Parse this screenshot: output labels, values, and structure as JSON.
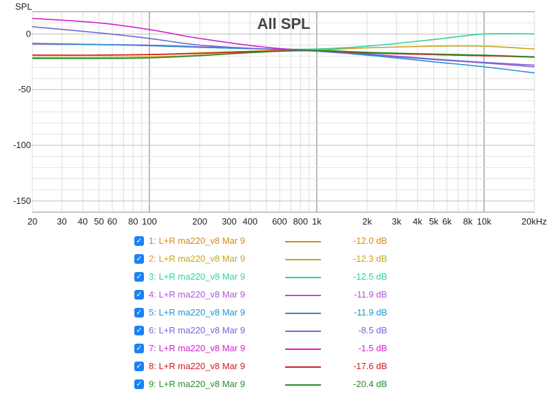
{
  "chart_data": {
    "type": "line",
    "title": "All SPL",
    "ylabel": "SPL",
    "xlabel": "",
    "x_scale": "log",
    "xlim": [
      20,
      20000
    ],
    "ylim": [
      -160,
      20
    ],
    "y_ticks": [
      {
        "value": 0,
        "label": "0"
      },
      {
        "value": -50,
        "label": "-50"
      },
      {
        "value": -100,
        "label": "-100"
      },
      {
        "value": -150,
        "label": "-150"
      }
    ],
    "x_ticks": [
      {
        "value": 20,
        "label": "20"
      },
      {
        "value": 30,
        "label": "30"
      },
      {
        "value": 40,
        "label": "40"
      },
      {
        "value": 50,
        "label": "50"
      },
      {
        "value": 60,
        "label": "60"
      },
      {
        "value": 80,
        "label": "80"
      },
      {
        "value": 100,
        "label": "100"
      },
      {
        "value": 200,
        "label": "200"
      },
      {
        "value": 300,
        "label": "300"
      },
      {
        "value": 400,
        "label": "400"
      },
      {
        "value": 600,
        "label": "600"
      },
      {
        "value": 800,
        "label": "800"
      },
      {
        "value": 1000,
        "label": "1k"
      },
      {
        "value": 2000,
        "label": "2k"
      },
      {
        "value": 3000,
        "label": "3k"
      },
      {
        "value": 4000,
        "label": "4k"
      },
      {
        "value": 5000,
        "label": "5k"
      },
      {
        "value": 6000,
        "label": "6k"
      },
      {
        "value": 8000,
        "label": "8k"
      },
      {
        "value": 10000,
        "label": "10k"
      },
      {
        "value": 20000,
        "label": "20kHz"
      }
    ],
    "grid": true,
    "x": [
      20,
      50,
      100,
      200,
      500,
      1000,
      2000,
      5000,
      10000,
      20000
    ],
    "series": [
      {
        "name": "1: L+R ma220_v8 Mar 9",
        "value": "-12.0 dB",
        "color": "#d9870f",
        "values": [
          -19,
          -19,
          -18.5,
          -17,
          -15,
          -14.5,
          -16.5,
          -18.5,
          -19.5,
          -21
        ]
      },
      {
        "name": "2: L+R ma220_v8 Mar 9",
        "value": "-12.3 dB",
        "color": "#c8a21e",
        "values": [
          -21,
          -21,
          -20.5,
          -19,
          -16,
          -14.5,
          -12.5,
          -11,
          -11,
          -13.5
        ]
      },
      {
        "name": "3: L+R ma220_v8 Mar 9",
        "value": "-12.5 dB",
        "color": "#2fcfa3",
        "values": [
          -8.5,
          -9.5,
          -10.5,
          -12,
          -13.5,
          -13.5,
          -11,
          -5,
          0,
          0
        ]
      },
      {
        "name": "4: L+R ma220_v8 Mar 9",
        "value": "-11.9 dB",
        "color": "#b152d8",
        "values": [
          -9,
          -9.5,
          -10,
          -11.5,
          -13.5,
          -15,
          -18.5,
          -23,
          -26,
          -29.5
        ]
      },
      {
        "name": "5: L+R ma220_v8 Mar 9",
        "value": "-11.9 dB",
        "color": "#1f93cc",
        "values": [
          -8.5,
          -9.5,
          -10.5,
          -12,
          -13.5,
          -15.5,
          -19,
          -25,
          -29.5,
          -35
        ]
      },
      {
        "name": "6: L+R ma220_v8 Mar 9",
        "value": "-8.5 dB",
        "color": "#6b6ad0",
        "values": [
          6.5,
          1,
          -4,
          -10,
          -13.5,
          -15,
          -18,
          -22.5,
          -25.5,
          -28
        ]
      },
      {
        "name": "7: L+R ma220_v8 Mar 9",
        "value": "-1.5 dB",
        "color": "#d51ed0",
        "values": [
          14,
          10,
          4,
          -4,
          -12,
          -15,
          -17,
          -18.5,
          -19.5,
          -20.5
        ]
      },
      {
        "name": "8: L+R ma220_v8 Mar 9",
        "value": "-17.6 dB",
        "color": "#d11b1b",
        "values": [
          -19,
          -19,
          -18.5,
          -17.5,
          -15.5,
          -15,
          -17,
          -18.5,
          -19.5,
          -20.5
        ]
      },
      {
        "name": "9: L+R ma220_v8 Mar 9",
        "value": "-20.4 dB",
        "color": "#2a8a2a",
        "values": [
          -22,
          -22,
          -21.5,
          -19.5,
          -16,
          -15,
          -16.5,
          -18,
          -19,
          -20.5
        ]
      }
    ]
  }
}
